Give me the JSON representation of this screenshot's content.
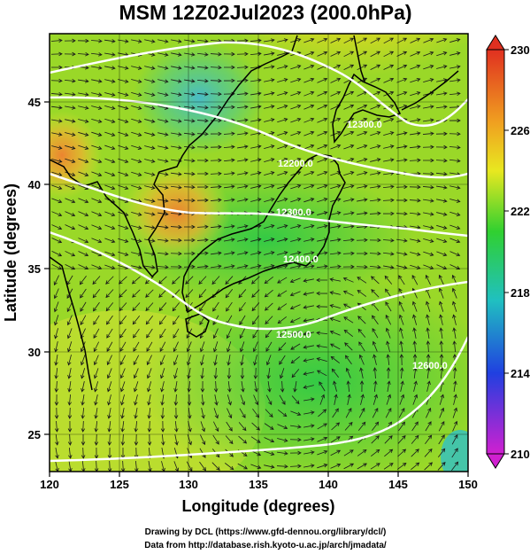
{
  "title": "MSM 12Z02Jul2023 (200.0hPa)",
  "xlabel": "Longitude (degrees)",
  "ylabel": "Latitude  (degrees)",
  "x_ticks": [
    "120",
    "125",
    "130",
    "135",
    "140",
    "145",
    "150"
  ],
  "y_ticks": [
    "25",
    "30",
    "35",
    "40",
    "45"
  ],
  "colorbar": {
    "ticks": [
      "230",
      "226",
      "222",
      "218",
      "214",
      "210"
    ],
    "range": [
      210,
      230
    ],
    "colors": {
      "top": "#e03020",
      "upper": "#f0a020",
      "mid_high": "#e8e820",
      "mid": "#30d030",
      "mid_low": "#20c0c0",
      "lower": "#2040e0",
      "bottom": "#d020d0"
    }
  },
  "contour_labels": [
    "12300.0",
    "12200.0",
    "12300.0",
    "12400.0",
    "12500.0",
    "12600.0"
  ],
  "credits": {
    "line1": "Drawing by DCL (https://www.gfd-dennou.org/library/dcl/)",
    "line2": "Data from http://database.rish.kyoto-u.ac.jp/arch/jmadata/"
  },
  "chart_data": {
    "type": "heatmap",
    "title": "MSM 12Z02Jul2023 (200.0hPa)",
    "xlabel": "Longitude (degrees)",
    "ylabel": "Latitude  (degrees)",
    "xlim": [
      120,
      150
    ],
    "ylim": [
      22.4,
      47.6
    ],
    "colorbar_range": [
      210,
      230
    ],
    "contour_lines": [
      {
        "label": "12200.0",
        "points": [
          [
            120,
            44.3
          ],
          [
            126,
            45.6
          ],
          [
            131,
            46.3
          ],
          [
            135,
            45.7
          ],
          [
            139,
            44.3
          ],
          [
            141,
            43.4
          ],
          [
            143,
            42.5
          ],
          [
            146,
            42.3
          ],
          [
            150,
            43.0
          ]
        ]
      },
      {
        "label": "12300.0",
        "points": [
          [
            120,
            42.9
          ],
          [
            126,
            43.3
          ],
          [
            132,
            42.8
          ],
          [
            137,
            41.3
          ],
          [
            141,
            40.6
          ],
          [
            145,
            40.1
          ],
          [
            150,
            39.8
          ]
        ]
      },
      {
        "label": "12400.0",
        "points": [
          [
            120,
            38.6
          ],
          [
            126,
            36.9
          ],
          [
            131,
            37.6
          ],
          [
            135,
            37.7
          ],
          [
            140,
            37.0
          ],
          [
            145,
            36.6
          ],
          [
            150,
            35.9
          ]
        ]
      },
      {
        "label": "12500.0",
        "points": [
          [
            120,
            36.4
          ],
          [
            126,
            35.4
          ],
          [
            130,
            33.6
          ],
          [
            134,
            31.9
          ],
          [
            138,
            31.2
          ],
          [
            143,
            31.7
          ],
          [
            148,
            33.3
          ],
          [
            150,
            33.7
          ]
        ]
      },
      {
        "label": "12600.0",
        "points": [
          [
            135,
            23.0
          ],
          [
            140,
            23.6
          ],
          [
            145,
            25.6
          ],
          [
            150,
            29.8
          ]
        ]
      }
    ]
  }
}
